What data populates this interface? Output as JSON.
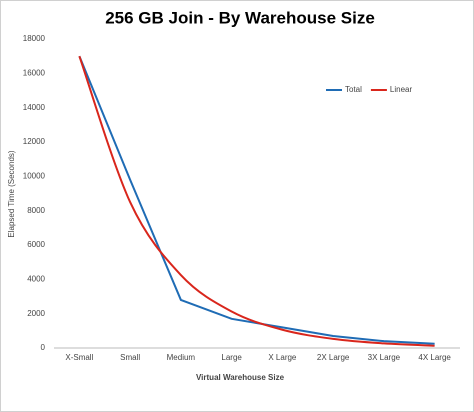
{
  "chart_data": {
    "type": "line",
    "title": "256 GB Join - By Warehouse Size",
    "x_label": "Virtual Warehouse Size",
    "y_label": "Elapsed Time (Seconds)",
    "categories": [
      "X-Small",
      "Small",
      "Medium",
      "Large",
      "X Large",
      "2X Large",
      "3X Large",
      "4X Large"
    ],
    "series": [
      {
        "name": "Total",
        "color": "#1f6cb5",
        "smooth": false,
        "values": [
          17000,
          9800,
          2800,
          1700,
          1200,
          700,
          400,
          250
        ]
      },
      {
        "name": "Linear",
        "color": "#d9261c",
        "smooth": true,
        "values": [
          17000,
          8500,
          4250,
          2125,
          1062,
          531,
          266,
          133
        ]
      }
    ],
    "ylim": [
      0,
      18000
    ],
    "yticks": [
      0,
      2000,
      4000,
      6000,
      8000,
      10000,
      12000,
      14000,
      16000,
      18000
    ],
    "grid": false,
    "legend": "top-right"
  }
}
